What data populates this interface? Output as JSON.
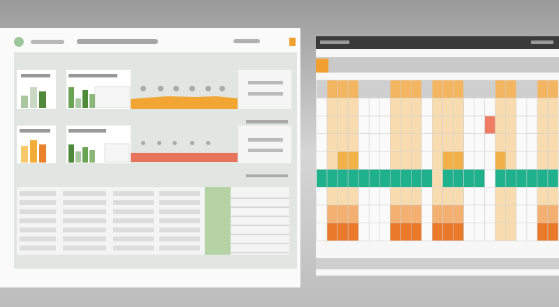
{
  "cards": [
    {
      "bars": [
        18,
        30,
        24
      ]
    },
    {
      "bars": [
        30,
        14,
        26,
        20
      ]
    },
    {
      "bars": [
        24,
        32,
        26
      ]
    },
    {
      "bars": [
        26,
        16,
        22,
        18
      ]
    }
  ]
}
